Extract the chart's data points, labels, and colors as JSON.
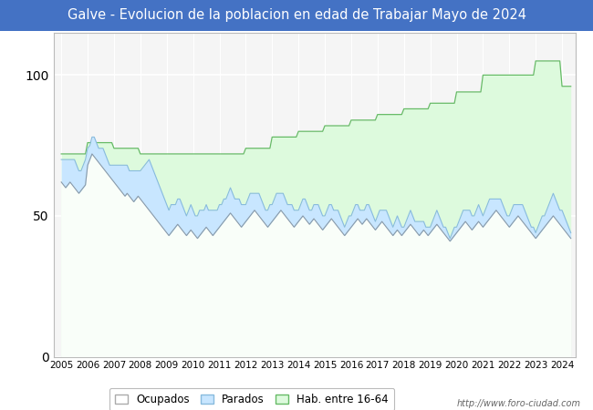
{
  "title": "Galve - Evolucion de la poblacion en edad de Trabajar Mayo de 2024",
  "title_bg_color": "#4472C4",
  "title_text_color": "#FFFFFF",
  "ylim": [
    0,
    115
  ],
  "xlim_left": 2004.7,
  "xlim_right": 2024.5,
  "yticks": [
    0,
    50,
    100
  ],
  "footer_text": "http://www.foro-ciudad.com",
  "legend_labels": [
    "Ocupados",
    "Parados",
    "Hab. entre 16-64"
  ],
  "fill_ocupados": "#DDEEFF",
  "fill_parados": "#C8E6FF",
  "fill_hab": "#DDFADD",
  "line_ocupados": "#8899AA",
  "line_parados": "#88BBDD",
  "line_hab": "#66BB66",
  "bg_color": "#F5F5F5",
  "hab_values": [
    72,
    72,
    72,
    72,
    72,
    72,
    72,
    72,
    72,
    72,
    72,
    72,
    76,
    76,
    76,
    76,
    76,
    76,
    76,
    76,
    76,
    76,
    76,
    76,
    74,
    74,
    74,
    74,
    74,
    74,
    74,
    74,
    74,
    74,
    74,
    74,
    72,
    72,
    72,
    72,
    72,
    72,
    72,
    72,
    72,
    72,
    72,
    72,
    72,
    72,
    72,
    72,
    72,
    72,
    72,
    72,
    72,
    72,
    72,
    72,
    72,
    72,
    72,
    72,
    72,
    72,
    72,
    72,
    72,
    72,
    72,
    72,
    72,
    72,
    72,
    72,
    72,
    72,
    72,
    72,
    72,
    72,
    72,
    72,
    74,
    74,
    74,
    74,
    74,
    74,
    74,
    74,
    74,
    74,
    74,
    74,
    78,
    78,
    78,
    78,
    78,
    78,
    78,
    78,
    78,
    78,
    78,
    78,
    80,
    80,
    80,
    80,
    80,
    80,
    80,
    80,
    80,
    80,
    80,
    80,
    82,
    82,
    82,
    82,
    82,
    82,
    82,
    82,
    82,
    82,
    82,
    82,
    84,
    84,
    84,
    84,
    84,
    84,
    84,
    84,
    84,
    84,
    84,
    84,
    86,
    86,
    86,
    86,
    86,
    86,
    86,
    86,
    86,
    86,
    86,
    86,
    88,
    88,
    88,
    88,
    88,
    88,
    88,
    88,
    88,
    88,
    88,
    88,
    90,
    90,
    90,
    90,
    90,
    90,
    90,
    90,
    90,
    90,
    90,
    90,
    94,
    94,
    94,
    94,
    94,
    94,
    94,
    94,
    94,
    94,
    94,
    94,
    100,
    100,
    100,
    100,
    100,
    100,
    100,
    100,
    100,
    100,
    100,
    100,
    100,
    100,
    100,
    100,
    100,
    100,
    100,
    100,
    100,
    100,
    100,
    100,
    105,
    105,
    105,
    105,
    105,
    105,
    105,
    105,
    105,
    105,
    105,
    105,
    96,
    96,
    96,
    96,
    96
  ],
  "ocupados_values": [
    62,
    61,
    60,
    61,
    62,
    61,
    60,
    59,
    58,
    59,
    60,
    61,
    68,
    70,
    72,
    71,
    70,
    69,
    68,
    67,
    66,
    65,
    64,
    63,
    62,
    61,
    60,
    59,
    58,
    57,
    58,
    57,
    56,
    55,
    56,
    57,
    56,
    55,
    54,
    53,
    52,
    51,
    50,
    49,
    48,
    47,
    46,
    45,
    44,
    43,
    44,
    45,
    46,
    47,
    46,
    45,
    44,
    43,
    44,
    45,
    44,
    43,
    42,
    43,
    44,
    45,
    46,
    45,
    44,
    43,
    44,
    45,
    46,
    47,
    48,
    49,
    50,
    51,
    50,
    49,
    48,
    47,
    46,
    47,
    48,
    49,
    50,
    51,
    52,
    51,
    50,
    49,
    48,
    47,
    46,
    47,
    48,
    49,
    50,
    51,
    52,
    51,
    50,
    49,
    48,
    47,
    46,
    47,
    48,
    49,
    50,
    49,
    48,
    47,
    48,
    49,
    48,
    47,
    46,
    45,
    46,
    47,
    48,
    49,
    48,
    47,
    46,
    45,
    44,
    43,
    44,
    45,
    46,
    47,
    48,
    49,
    48,
    47,
    48,
    49,
    48,
    47,
    46,
    45,
    46,
    47,
    48,
    47,
    46,
    45,
    44,
    43,
    44,
    45,
    44,
    43,
    44,
    45,
    46,
    47,
    46,
    45,
    44,
    43,
    44,
    45,
    44,
    43,
    44,
    45,
    46,
    47,
    46,
    45,
    44,
    43,
    42,
    41,
    42,
    43,
    44,
    45,
    46,
    47,
    48,
    47,
    46,
    45,
    46,
    47,
    48,
    47,
    46,
    47,
    48,
    49,
    50,
    51,
    52,
    51,
    50,
    49,
    48,
    47,
    46,
    47,
    48,
    49,
    50,
    49,
    48,
    47,
    46,
    45,
    44,
    43,
    42,
    43,
    44,
    45,
    46,
    47,
    48,
    49,
    50,
    49,
    48,
    47,
    46,
    45,
    44,
    43,
    42
  ],
  "parados_values": [
    8,
    9,
    10,
    9,
    8,
    9,
    10,
    9,
    8,
    7,
    8,
    9,
    6,
    5,
    6,
    7,
    6,
    5,
    6,
    7,
    6,
    5,
    4,
    5,
    6,
    7,
    8,
    9,
    10,
    11,
    10,
    9,
    10,
    11,
    10,
    9,
    10,
    12,
    14,
    16,
    18,
    17,
    16,
    15,
    14,
    13,
    12,
    11,
    10,
    9,
    10,
    9,
    8,
    9,
    10,
    9,
    8,
    7,
    8,
    9,
    8,
    7,
    8,
    9,
    8,
    7,
    8,
    7,
    8,
    9,
    8,
    7,
    8,
    7,
    8,
    7,
    8,
    9,
    8,
    7,
    8,
    9,
    8,
    7,
    6,
    7,
    8,
    7,
    6,
    7,
    8,
    7,
    6,
    5,
    6,
    7,
    6,
    7,
    8,
    7,
    6,
    7,
    6,
    5,
    6,
    7,
    6,
    5,
    4,
    5,
    6,
    7,
    6,
    5,
    4,
    5,
    6,
    7,
    6,
    5,
    4,
    5,
    6,
    5,
    4,
    5,
    6,
    5,
    4,
    3,
    4,
    5,
    4,
    5,
    6,
    5,
    4,
    5,
    4,
    5,
    6,
    5,
    4,
    3,
    4,
    5,
    4,
    5,
    6,
    5,
    4,
    3,
    4,
    5,
    4,
    3,
    2,
    3,
    4,
    5,
    4,
    3,
    4,
    5,
    4,
    3,
    2,
    3,
    2,
    3,
    4,
    5,
    4,
    3,
    2,
    3,
    2,
    1,
    2,
    3,
    2,
    3,
    4,
    5,
    4,
    5,
    6,
    5,
    4,
    5,
    6,
    5,
    4,
    5,
    6,
    7,
    6,
    5,
    4,
    5,
    6,
    5,
    4,
    3,
    4,
    5,
    6,
    5,
    4,
    5,
    6,
    5,
    4,
    3,
    2,
    3,
    2,
    3,
    4,
    5,
    4,
    5,
    6,
    7,
    8,
    7,
    6,
    5,
    6,
    5,
    4,
    3,
    2
  ]
}
